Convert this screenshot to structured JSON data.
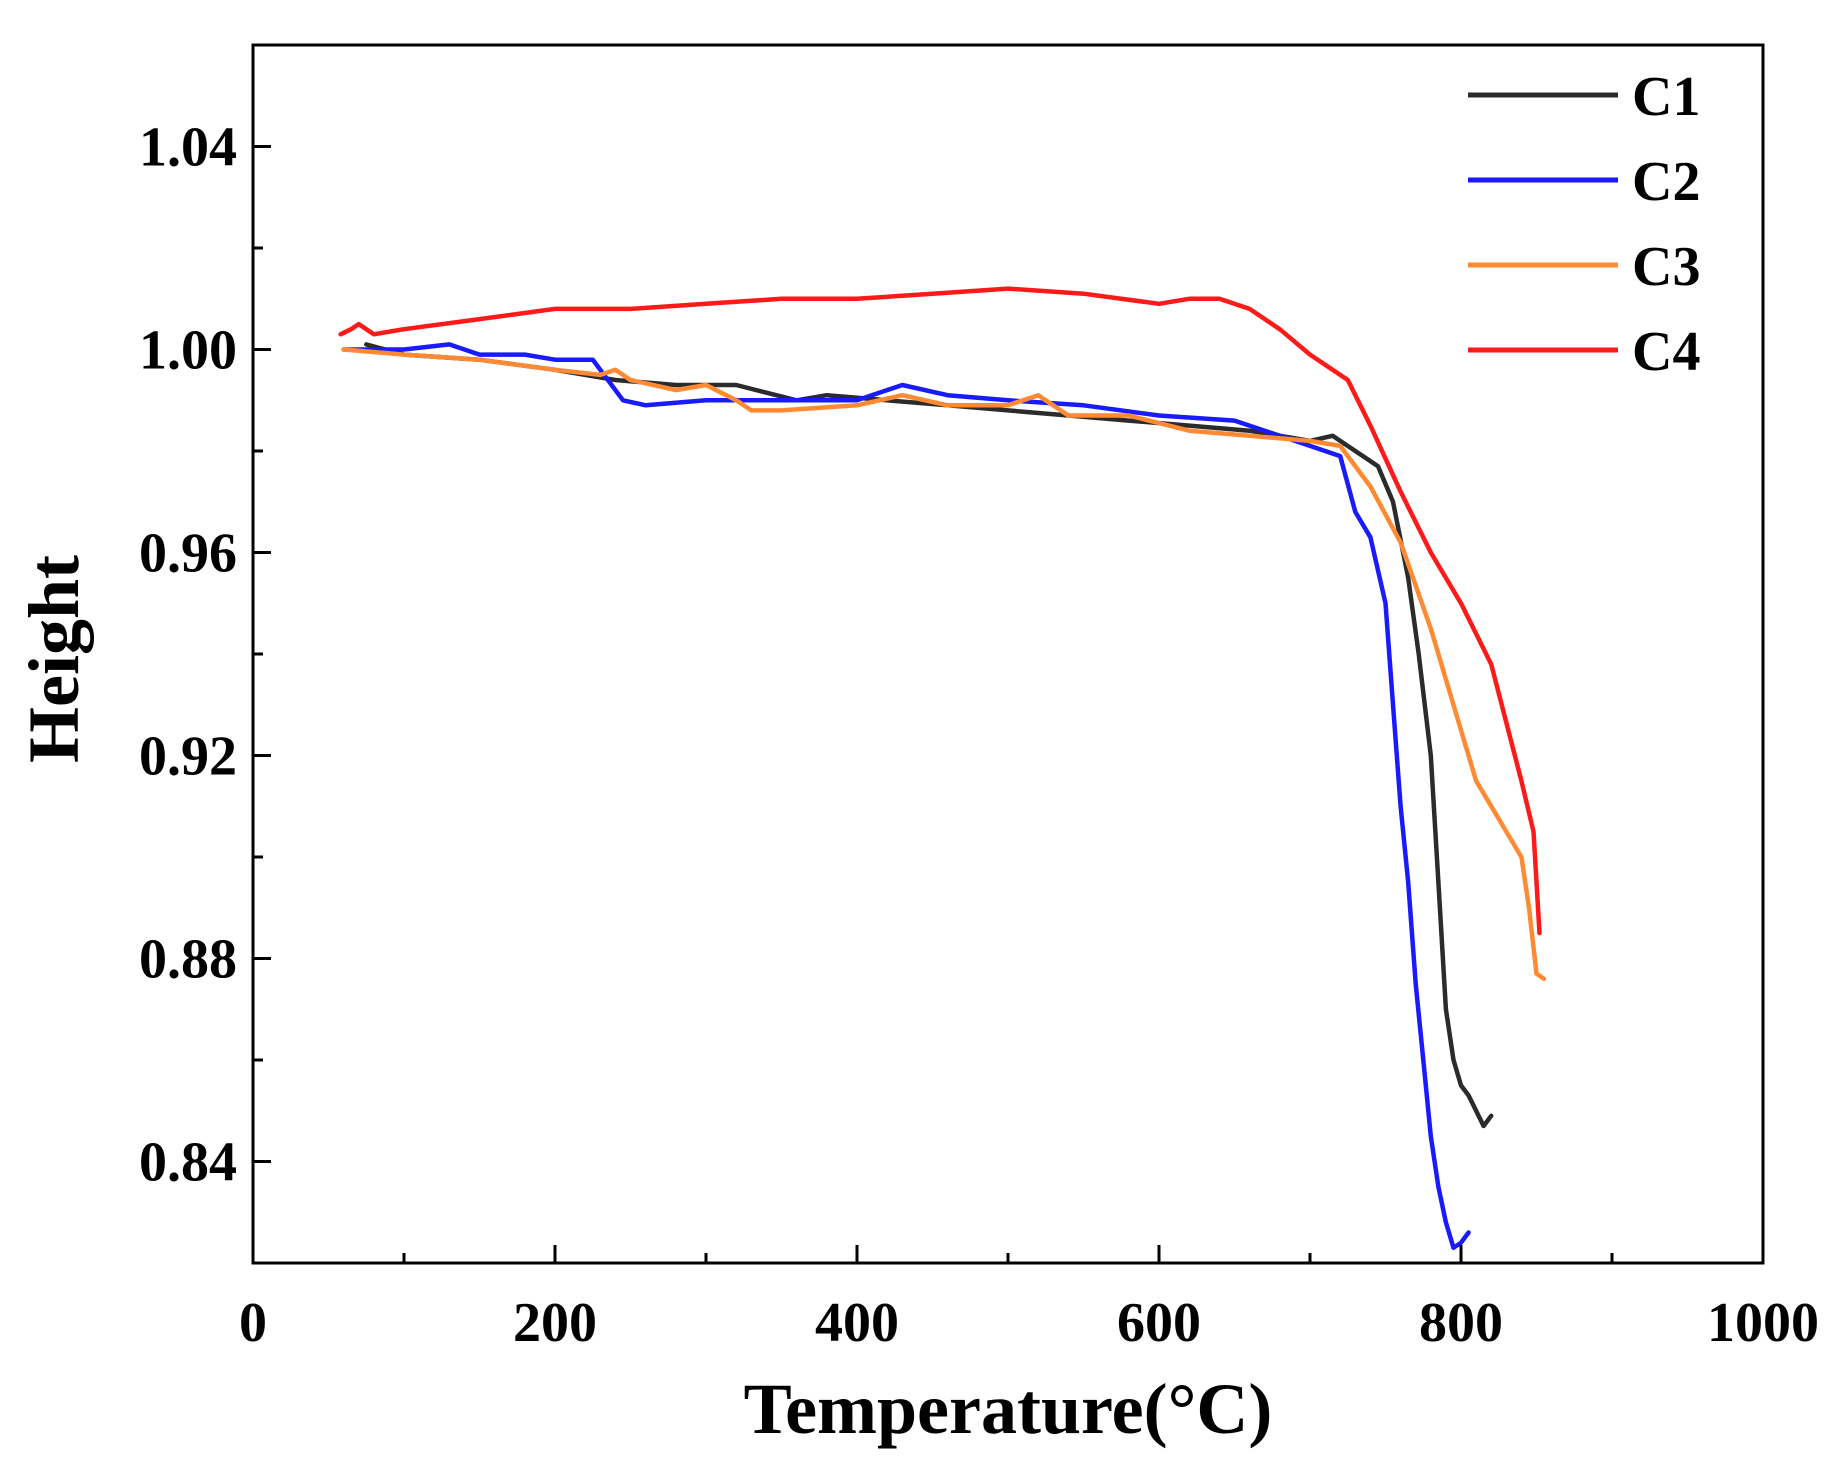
{
  "chart_data": {
    "type": "line",
    "title": "",
    "xlabel": "Temperature(°C)",
    "ylabel": "Height",
    "xlim": [
      0,
      1000
    ],
    "ylim": [
      0.82,
      1.06
    ],
    "x_ticks": [
      0,
      200,
      400,
      600,
      800,
      1000
    ],
    "x_tick_labels": [
      "0",
      "200",
      "400",
      "600",
      "800",
      "1000"
    ],
    "x_minor_ticks": [
      100,
      300,
      500,
      700,
      900
    ],
    "y_ticks": [
      0.84,
      0.88,
      0.92,
      0.96,
      1.0,
      1.04
    ],
    "y_tick_labels": [
      "0.84",
      "0.88",
      "0.92",
      "0.96",
      "1.00",
      "1.04"
    ],
    "y_minor_ticks": [
      0.82,
      0.86,
      0.9,
      0.94,
      0.98,
      1.02,
      1.06
    ],
    "grid": false,
    "legend_position": "top-right",
    "series": [
      {
        "name": "C1",
        "color": "#2b2b2b",
        "x": [
          75,
          100,
          150,
          200,
          240,
          280,
          320,
          360,
          380,
          420,
          460,
          500,
          540,
          580,
          620,
          660,
          700,
          715,
          730,
          745,
          755,
          765,
          772,
          780,
          785,
          790,
          795,
          800,
          805,
          810,
          815,
          820
        ],
        "y": [
          1.001,
          0.999,
          0.998,
          0.996,
          0.994,
          0.993,
          0.993,
          0.99,
          0.991,
          0.99,
          0.989,
          0.988,
          0.987,
          0.986,
          0.985,
          0.984,
          0.982,
          0.983,
          0.98,
          0.977,
          0.97,
          0.955,
          0.94,
          0.92,
          0.895,
          0.87,
          0.86,
          0.855,
          0.853,
          0.85,
          0.847,
          0.849
        ]
      },
      {
        "name": "C2",
        "color": "#1a1aff",
        "x": [
          60,
          100,
          130,
          150,
          180,
          200,
          225,
          230,
          245,
          260,
          300,
          350,
          400,
          430,
          460,
          500,
          550,
          600,
          650,
          700,
          720,
          730,
          740,
          750,
          755,
          760,
          765,
          770,
          775,
          780,
          785,
          790,
          795,
          800,
          805
        ],
        "y": [
          1.0,
          1.0,
          1.001,
          0.999,
          0.999,
          0.998,
          0.998,
          0.996,
          0.99,
          0.989,
          0.99,
          0.99,
          0.99,
          0.993,
          0.991,
          0.99,
          0.989,
          0.987,
          0.986,
          0.981,
          0.979,
          0.968,
          0.963,
          0.95,
          0.93,
          0.91,
          0.895,
          0.875,
          0.86,
          0.845,
          0.835,
          0.828,
          0.823,
          0.824,
          0.826
        ]
      },
      {
        "name": "C3",
        "color": "#ff8a33",
        "x": [
          60,
          100,
          150,
          200,
          230,
          240,
          250,
          280,
          300,
          320,
          330,
          350,
          400,
          430,
          460,
          500,
          520,
          540,
          580,
          620,
          660,
          700,
          720,
          740,
          760,
          780,
          800,
          810,
          820,
          830,
          840,
          845,
          850,
          855
        ],
        "y": [
          1.0,
          0.999,
          0.998,
          0.996,
          0.995,
          0.996,
          0.994,
          0.992,
          0.993,
          0.99,
          0.988,
          0.988,
          0.989,
          0.991,
          0.989,
          0.989,
          0.991,
          0.987,
          0.987,
          0.984,
          0.983,
          0.982,
          0.981,
          0.973,
          0.962,
          0.945,
          0.925,
          0.915,
          0.91,
          0.905,
          0.9,
          0.89,
          0.877,
          0.876
        ]
      },
      {
        "name": "C4",
        "color": "#ff1a1a",
        "x": [
          58,
          65,
          70,
          80,
          100,
          150,
          200,
          250,
          300,
          350,
          400,
          450,
          500,
          550,
          600,
          620,
          640,
          660,
          680,
          700,
          710,
          725,
          740,
          760,
          780,
          800,
          820,
          840,
          848,
          852
        ],
        "y": [
          1.003,
          1.004,
          1.005,
          1.003,
          1.004,
          1.006,
          1.008,
          1.008,
          1.009,
          1.01,
          1.01,
          1.011,
          1.012,
          1.011,
          1.009,
          1.01,
          1.01,
          1.008,
          1.004,
          0.999,
          0.997,
          0.994,
          0.985,
          0.972,
          0.96,
          0.95,
          0.938,
          0.915,
          0.905,
          0.885
        ]
      }
    ]
  }
}
